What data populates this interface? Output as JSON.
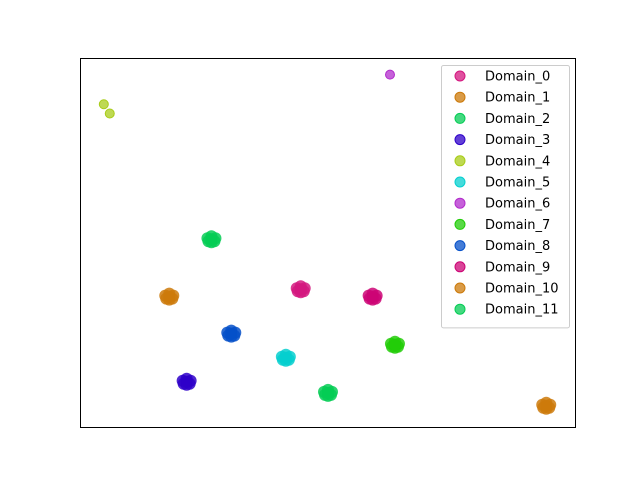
{
  "chart_data": {
    "type": "scatter",
    "title": "",
    "xlabel": "",
    "ylabel": "",
    "xlim": [
      0,
      100
    ],
    "ylim": [
      0,
      100
    ],
    "ticks_visible": false,
    "grid": false,
    "legend_position": "upper-right",
    "series": [
      {
        "name": "Domain_0",
        "color": "#d4177f",
        "points": [
          [
            44.5,
            37.5
          ]
        ]
      },
      {
        "name": "Domain_1",
        "color": "#cc7a0a",
        "points": [
          [
            18.0,
            35.5
          ]
        ]
      },
      {
        "name": "Domain_2",
        "color": "#05cc55",
        "points": [
          [
            26.5,
            51.0
          ]
        ]
      },
      {
        "name": "Domain_3",
        "color": "#2e00c9",
        "points": [
          [
            21.5,
            12.5
          ]
        ]
      },
      {
        "name": "Domain_4",
        "color": "#a8cc18",
        "points": [
          [
            4.8,
            87.5
          ],
          [
            6.0,
            85.0
          ]
        ]
      },
      {
        "name": "Domain_5",
        "color": "#06cfcf",
        "points": [
          [
            41.5,
            19.0
          ]
        ]
      },
      {
        "name": "Domain_6",
        "color": "#b22ccc",
        "points": [
          [
            62.5,
            95.5
          ]
        ]
      },
      {
        "name": "Domain_7",
        "color": "#22cc08",
        "points": [
          [
            63.5,
            22.5
          ]
        ]
      },
      {
        "name": "Domain_8",
        "color": "#0550c9",
        "points": [
          [
            30.5,
            25.5
          ]
        ]
      },
      {
        "name": "Domain_9",
        "color": "#cc0575",
        "points": [
          [
            59.0,
            35.5
          ]
        ]
      },
      {
        "name": "Domain_10",
        "color": "#cc7a0a",
        "points": [
          [
            94.0,
            6.0
          ]
        ]
      },
      {
        "name": "Domain_11",
        "color": "#05cc55",
        "points": [
          [
            50.0,
            9.5
          ]
        ]
      }
    ]
  }
}
